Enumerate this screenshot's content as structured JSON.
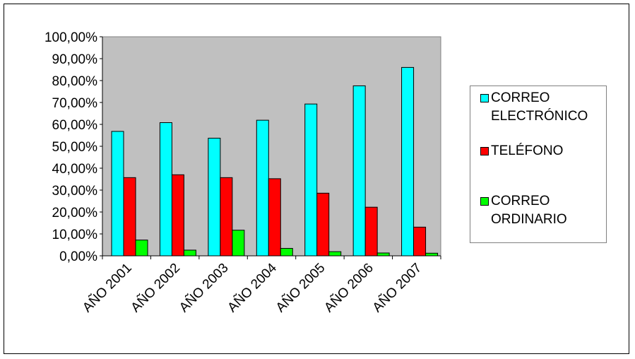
{
  "chart_data": {
    "type": "bar",
    "categories": [
      "AÑO 2001",
      "AÑO 2002",
      "AÑO 2003",
      "AÑO 2004",
      "AÑO 2005",
      "AÑO 2006",
      "AÑO 2007"
    ],
    "series": [
      {
        "name": "CORREO ELECTRÓNICO",
        "legend_label": "CORREO\nELECTRÓNICO",
        "color": "#00ffff",
        "values": [
          56.8,
          60.8,
          53.7,
          61.9,
          69.3,
          77.6,
          86.0
        ]
      },
      {
        "name": "TELÉFONO",
        "legend_label": "TELÉFONO",
        "color": "#ff0000",
        "values": [
          35.7,
          37.0,
          35.7,
          35.2,
          28.6,
          22.2,
          13.1
        ]
      },
      {
        "name": "CORREO ORDINARIO",
        "legend_label": "CORREO\nORDINARIO",
        "color": "#00ff00",
        "values": [
          7.2,
          2.6,
          11.7,
          3.4,
          1.9,
          1.3,
          1.2
        ]
      }
    ],
    "y_ticks": [
      "0,00%",
      "10,00%",
      "20,00%",
      "30,00%",
      "40,00%",
      "50,00%",
      "60,00%",
      "70,00%",
      "80,00%",
      "90,00%",
      "100,00%"
    ],
    "ylim": [
      0,
      100
    ],
    "title": "",
    "xlabel": "",
    "ylabel": "",
    "grid": false,
    "legend_position": "right",
    "plot_background": "#c0c0c0"
  }
}
